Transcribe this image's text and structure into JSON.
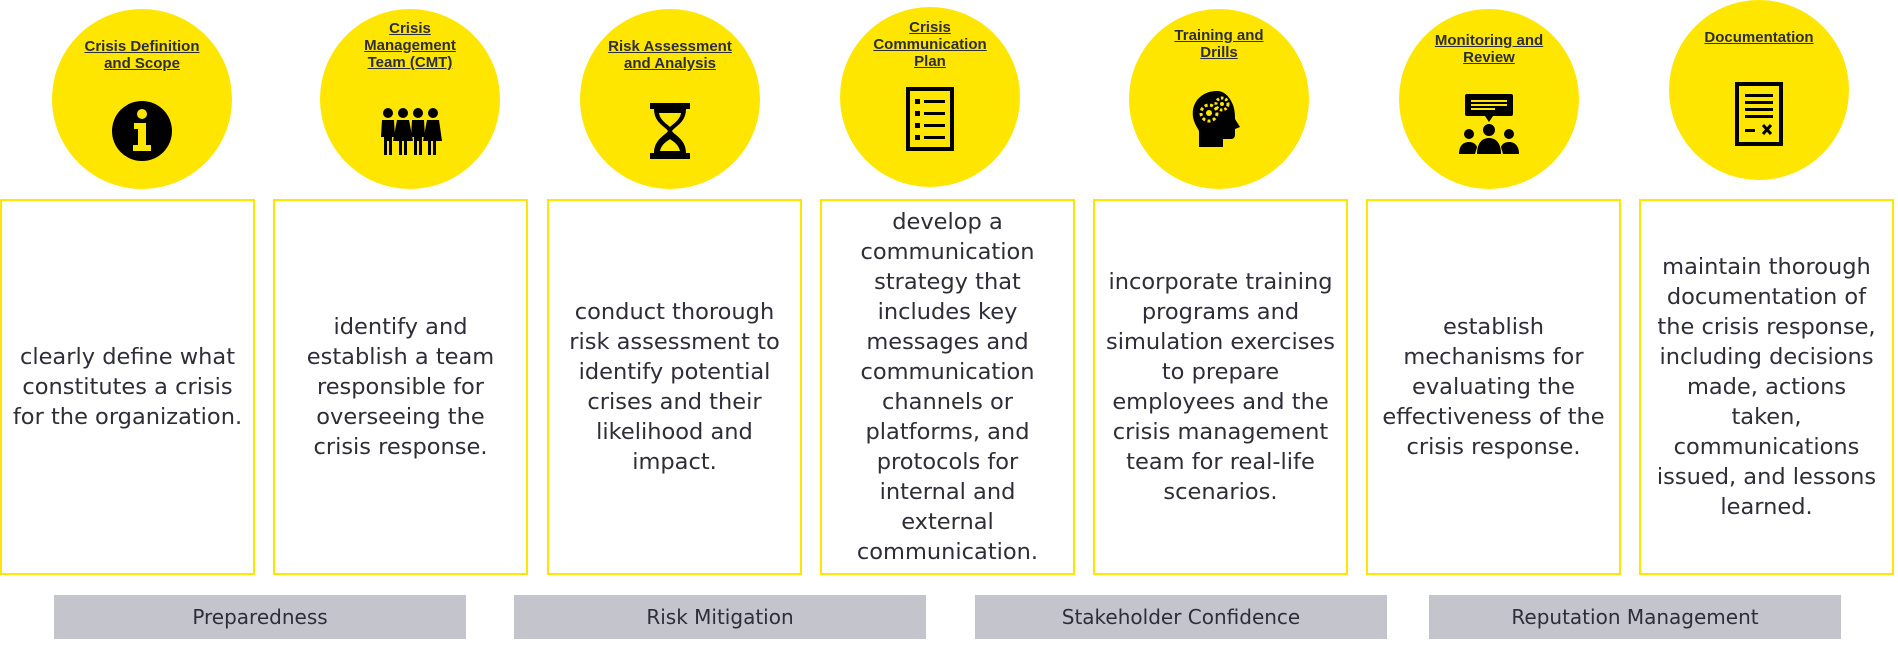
{
  "colors": {
    "accent": "#FFE600",
    "text": "#2e2e38",
    "band": "#C4C4CD"
  },
  "stages": [
    {
      "title": "Crisis Definition\nand Scope",
      "icon": "info-icon",
      "text": "clearly define what constitutes a crisis for the organization."
    },
    {
      "title": "Crisis\nManagement\nTeam (CMT)",
      "icon": "team-icon",
      "text": "identify and establish a team responsible for overseeing the crisis response."
    },
    {
      "title": "Risk Assessment\nand Analysis",
      "icon": "hourglass-icon",
      "text": "conduct thorough risk assessment to identify potential crises and their likelihood and impact."
    },
    {
      "title": "Crisis\nCommunication\nPlan",
      "icon": "checklist-icon",
      "text": "develop a communication strategy that includes key messages and communication channels or platforms, and protocols for internal and external communication."
    },
    {
      "title": "Training and\nDrills",
      "icon": "head-gears-icon",
      "text": "incorporate training programs and simulation exercises to prepare employees and the crisis management team for real-life scenarios."
    },
    {
      "title": "Monitoring and\nReview",
      "icon": "meeting-icon",
      "text": "establish mechanisms for evaluating the effectiveness of the crisis response."
    },
    {
      "title": "Documentation",
      "icon": "document-icon",
      "text": "maintain thorough documentation of the crisis response, including decisions made, actions taken, communications issued, and lessons learned."
    }
  ],
  "outcomes": [
    "Preparedness",
    "Risk Mitigation",
    "Stakeholder Confidence",
    "Reputation Management"
  ]
}
